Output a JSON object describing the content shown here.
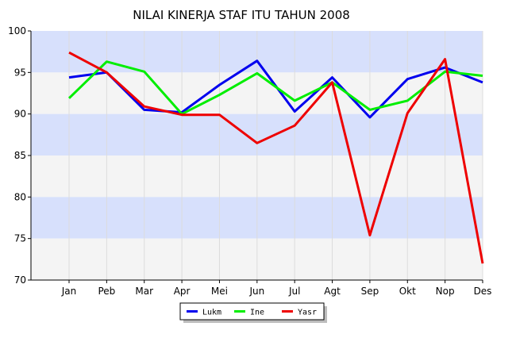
{
  "chart_data": {
    "type": "line",
    "title": "NILAI KINERJA STAF ITU TAHUN 2008",
    "categories": [
      "Jan",
      "Peb",
      "Mar",
      "Apr",
      "Mei",
      "Jun",
      "Jul",
      "Agt",
      "Sep",
      "Okt",
      "Nop",
      "Des"
    ],
    "ylim": [
      70,
      100
    ],
    "yticks": [
      "70",
      "75",
      "80",
      "85",
      "90",
      "95",
      "100"
    ],
    "grid": true,
    "legend_position": "bottom-center",
    "series": [
      {
        "name": "Lukm",
        "color": "#0000ee",
        "values": [
          94.4,
          95.0,
          90.5,
          90.2,
          93.5,
          96.4,
          90.3,
          94.4,
          89.6,
          94.2,
          95.6,
          93.8
        ]
      },
      {
        "name": "Ine",
        "color": "#00ee00",
        "values": [
          91.9,
          96.3,
          95.1,
          90.0,
          92.3,
          94.9,
          91.6,
          93.8,
          90.5,
          91.6,
          95.1,
          94.6
        ]
      },
      {
        "name": "Yasr",
        "color": "#ee0000",
        "values": [
          97.4,
          95.0,
          90.9,
          89.9,
          89.9,
          86.5,
          88.6,
          93.8,
          75.4,
          90.1,
          96.6,
          72.0
        ]
      }
    ],
    "band_colors": [
      "#d7e0fc",
      "#f4f4f4"
    ]
  }
}
